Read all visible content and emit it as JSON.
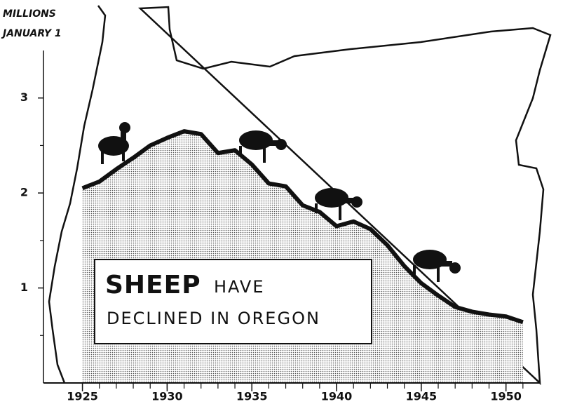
{
  "chart_data": {
    "type": "area",
    "ylabel": [
      "MILLIONS",
      "JANUARY 1"
    ],
    "annotations": [
      "SHEEP",
      "HAVE",
      "DECLINED IN OREGON"
    ],
    "x": [
      1925,
      1926,
      1927,
      1928,
      1929,
      1930,
      1931,
      1932,
      1933,
      1934,
      1935,
      1936,
      1937,
      1938,
      1939,
      1940,
      1941,
      1942,
      1943,
      1944,
      1945,
      1946,
      1947,
      1948,
      1949,
      1950,
      1951
    ],
    "values": [
      2.05,
      2.12,
      2.25,
      2.37,
      2.5,
      2.58,
      2.65,
      2.62,
      2.42,
      2.45,
      2.3,
      2.1,
      2.07,
      1.87,
      1.8,
      1.65,
      1.7,
      1.62,
      1.45,
      1.23,
      1.05,
      0.92,
      0.8,
      0.75,
      0.72,
      0.7,
      0.64
    ],
    "color": "#111111",
    "xlim": [
      1922.7,
      1952
    ],
    "xticks": [
      1925,
      1930,
      1935,
      1940,
      1945,
      1950
    ],
    "ylim": [
      0,
      3.5
    ],
    "yticks": [
      1,
      2,
      3
    ],
    "yminor_ticks": [
      0.5,
      1.5,
      2.5
    ]
  }
}
